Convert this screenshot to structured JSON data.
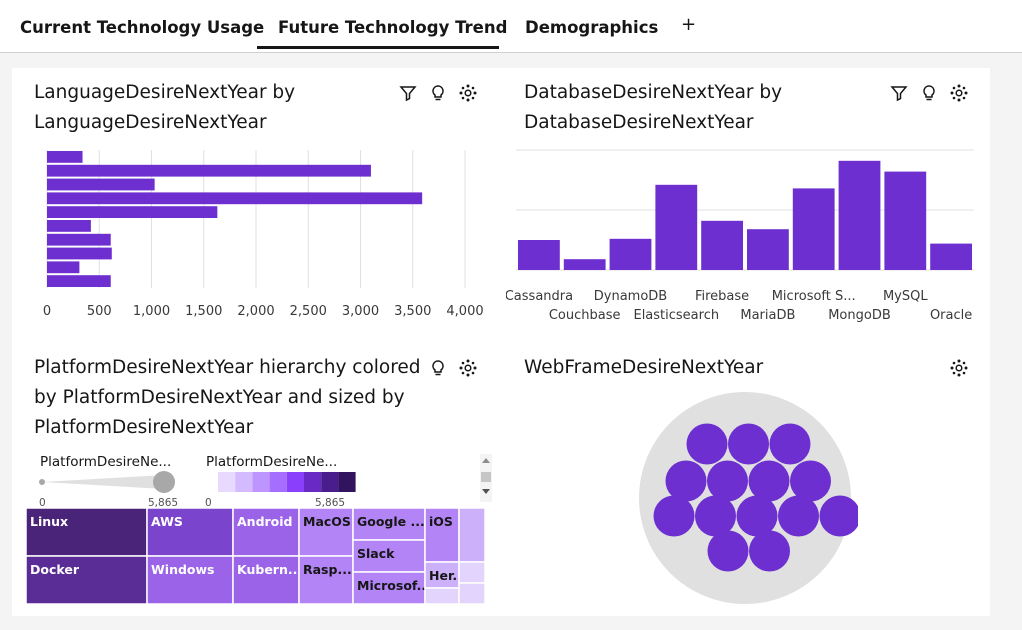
{
  "tabs": [
    {
      "label": "Current Technology Usage"
    },
    {
      "label": "Future Technology Trend"
    },
    {
      "label": "Demographics"
    }
  ],
  "add_tab_symbol": "+",
  "active_tab_index": 1,
  "colors": {
    "accent": "#6929c4",
    "bar": "#6d2fd0",
    "treemap_dark": "#491d8b",
    "bubble_bg": "#e0e0e0"
  },
  "panels": {
    "language": {
      "title_line1": "LanguageDesireNextYear by",
      "title_line2": "LanguageDesireNextYear"
    },
    "database": {
      "title_line1": "DatabaseDesireNextYear by",
      "title_line2": "DatabaseDesireNextYear"
    },
    "platform": {
      "title_line1": "PlatformDesireNextYear hierarchy colored",
      "title_line2": "by PlatformDesireNextYear and sized by",
      "title_line3": "PlatformDesireNextYear",
      "legend_size_label": "PlatformDesireNe...",
      "legend_color_label": "PlatformDesireNe...",
      "legend_min": "0",
      "legend_max": "5,865"
    },
    "webframe": {
      "title": "WebFrameDesireNextYear"
    }
  },
  "chart_data": [
    {
      "type": "bar",
      "orientation": "horizontal",
      "title": "LanguageDesireNextYear by LanguageDesireNextYear",
      "values": [
        340,
        3100,
        1030,
        3590,
        1630,
        420,
        610,
        620,
        310,
        610
      ],
      "xlim": [
        0,
        4000
      ],
      "xticks": [
        "0",
        "500",
        "1,000",
        "1,500",
        "2,000",
        "2,500",
        "3,000",
        "3,500",
        "4,000"
      ]
    },
    {
      "type": "bar",
      "title": "DatabaseDesireNextYear by DatabaseDesireNextYear",
      "categories": [
        "Cassandra",
        "Couchbase",
        "DynamoDB",
        "Elasticsearch",
        "Firebase",
        "MariaDB",
        "Microsoft S...",
        "MongoDB",
        "MySQL",
        "Oracle"
      ],
      "tick_labels": [
        "Cassandra",
        "Couchbase",
        "DynamoDB",
        "Elasticsearch",
        "Firebase",
        "MariaDB",
        "Microsoft S...",
        "MongoDB",
        "MySQL",
        "Oracle"
      ],
      "values": [
        0.25,
        0.09,
        0.26,
        0.71,
        0.41,
        0.34,
        0.68,
        0.91,
        0.82,
        0.22
      ],
      "grid": true
    },
    {
      "type": "treemap",
      "title": "PlatformDesireNextYear hierarchy colored by PlatformDesireNextYear and sized by PlatformDesireNextYear",
      "cells": [
        {
          "label": "Linux",
          "shade": 0
        },
        {
          "label": "Docker",
          "shade": 1
        },
        {
          "label": "AWS",
          "shade": 2
        },
        {
          "label": "Windows",
          "shade": 3
        },
        {
          "label": "Android",
          "shade": 3
        },
        {
          "label": "Kubern...",
          "shade": 3
        },
        {
          "label": "MacOS",
          "shade": 4
        },
        {
          "label": "Rasp...",
          "shade": 4
        },
        {
          "label": "Google ...",
          "shade": 4
        },
        {
          "label": "Slack",
          "shade": 4
        },
        {
          "label": "Microsof...",
          "shade": 4
        },
        {
          "label": "iOS",
          "shade": 4
        },
        {
          "label": "Her...",
          "shade": 5
        },
        {
          "label": "",
          "shade": 5
        },
        {
          "label": "",
          "shade": 6
        },
        {
          "label": "",
          "shade": 6
        },
        {
          "label": "",
          "shade": 6
        }
      ]
    },
    {
      "type": "bubble",
      "title": "WebFrameDesireNextYear",
      "bubble_count": 16
    }
  ]
}
